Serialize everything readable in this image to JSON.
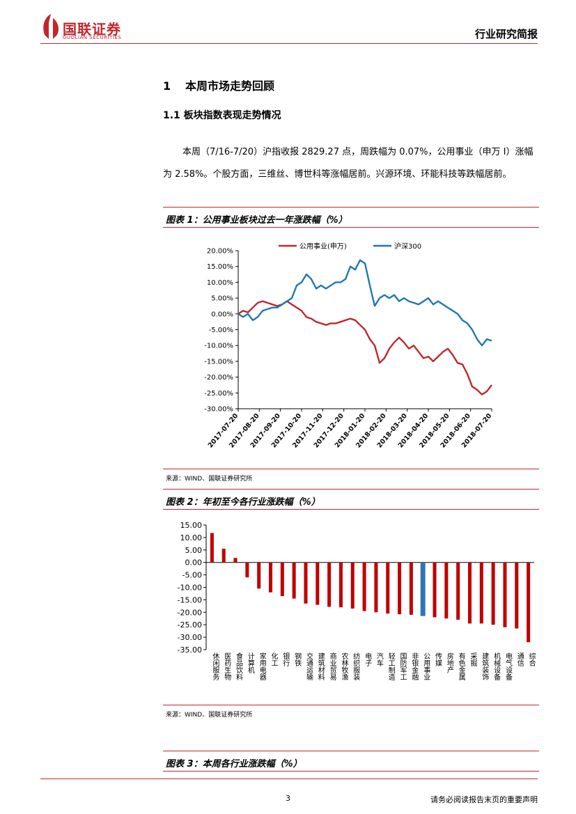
{
  "header": {
    "brand": "国联证券",
    "brand_en": "GUOLIAN SECURITIES",
    "report_type": "行业研究简报"
  },
  "section1": {
    "number": "1",
    "title": "本周市场走势回顾"
  },
  "section11": {
    "title": "1.1 板块指数表现走势情况"
  },
  "paragraph": "本周（7/16-7/20）沪指收报 2829.27 点，周跌幅为 0.07%，公用事业（申万 I）涨幅为 2.58%。个股方面，三维丝、博世科等涨幅居前。兴源环境、环能科技等跌幅居前。",
  "figure1": {
    "title": "图表 1：公用事业板块过去一年涨跌幅（%）",
    "source": "来源：WIND、国联证券研究所"
  },
  "figure2": {
    "title": "图表 2：年初至今各行业涨跌幅（%）",
    "source": "来源：WIND、国联证券研究所"
  },
  "figure3": {
    "title": "图表 3：本周各行业涨跌幅（%）"
  },
  "footer": {
    "page": "3",
    "disclaimer": "请务必阅读报告末页的重要声明"
  },
  "colors": {
    "brand_red": "#c0272d",
    "series_blue": "#1f77b4",
    "bar_red": "#c00000",
    "bar_blue": "#2e75b6"
  },
  "chart_data": [
    {
      "type": "line",
      "title": "",
      "ylim": [
        -30,
        20
      ],
      "yticks": [
        "20.00%",
        "15.00%",
        "10.00%",
        "5.00%",
        "0.00%",
        "-5.00%",
        "-10.00%",
        "-15.00%",
        "-20.00%",
        "-25.00%",
        "-30.00%"
      ],
      "xticks": [
        "2017-07-20",
        "2017-08-20",
        "2017-09-20",
        "2017-10-20",
        "2017-11-20",
        "2017-12-20",
        "2018-01-20",
        "2018-02-20",
        "2018-03-20",
        "2018-04-20",
        "2018-05-20",
        "2018-06-20",
        "2018-07-20"
      ],
      "series": [
        {
          "name": "公用事业(申万)",
          "color": "#c0272d",
          "values": [
            0,
            1,
            0.5,
            2,
            3.5,
            4,
            3.5,
            3,
            2.5,
            3,
            4,
            3,
            2,
            1,
            -1,
            -1.5,
            -2.5,
            -3,
            -3.5,
            -3,
            -3,
            -2.5,
            -2,
            -1.5,
            -2,
            -3.5,
            -5,
            -8,
            -10,
            -15.5,
            -14,
            -11,
            -9,
            -7.5,
            -9,
            -11,
            -10,
            -12,
            -14,
            -13.5,
            -15,
            -13.5,
            -12,
            -11,
            -13,
            -15.5,
            -16,
            -19,
            -23,
            -24,
            -25.5,
            -24.5,
            -22.5
          ]
        },
        {
          "name": "沪深300",
          "color": "#1f77b4",
          "values": [
            0,
            -1,
            0,
            -2,
            -1,
            1,
            1.5,
            2,
            2,
            3,
            4,
            5,
            9,
            10,
            12.5,
            11,
            8,
            9,
            8,
            9,
            10,
            10,
            11,
            15,
            14,
            17,
            16,
            9,
            2.5,
            5,
            6,
            5,
            6,
            4,
            5,
            4,
            3.5,
            3,
            4,
            5,
            3,
            4,
            3,
            2,
            1,
            0,
            -2,
            -3,
            -5,
            -8,
            -10,
            -8,
            -8.5
          ]
        }
      ]
    },
    {
      "type": "bar",
      "title": "",
      "ylim": [
        -35,
        15
      ],
      "yticks": [
        "15.00",
        "10.00",
        "5.00",
        "0.00",
        "-5.00",
        "-10.00",
        "-15.00",
        "-20.00",
        "-25.00",
        "-30.00",
        "-35.00"
      ],
      "highlight": "公用事业",
      "categories": [
        "休闲服务",
        "医药生物",
        "食品饮料",
        "计算机",
        "家用电器",
        "化工",
        "银行",
        "钢铁",
        "交通运输",
        "建筑材料",
        "商业贸易",
        "农林牧渔",
        "纺织服装",
        "电子",
        "汽车",
        "轻工制造",
        "国防军工",
        "非银金融",
        "公用事业",
        "传媒",
        "房地产",
        "有色金属",
        "采掘",
        "建筑装饰",
        "机械设备",
        "电气设备",
        "通信",
        "综合"
      ],
      "values": [
        11.8,
        5.5,
        1.8,
        -6,
        -10.5,
        -12,
        -13.5,
        -14.5,
        -16.5,
        -17,
        -17.8,
        -18,
        -18.5,
        -19.5,
        -20,
        -20.5,
        -20.8,
        -21,
        -21.5,
        -22,
        -22.5,
        -23,
        -24.5,
        -24.5,
        -25,
        -26,
        -26.5,
        -32
      ]
    }
  ]
}
